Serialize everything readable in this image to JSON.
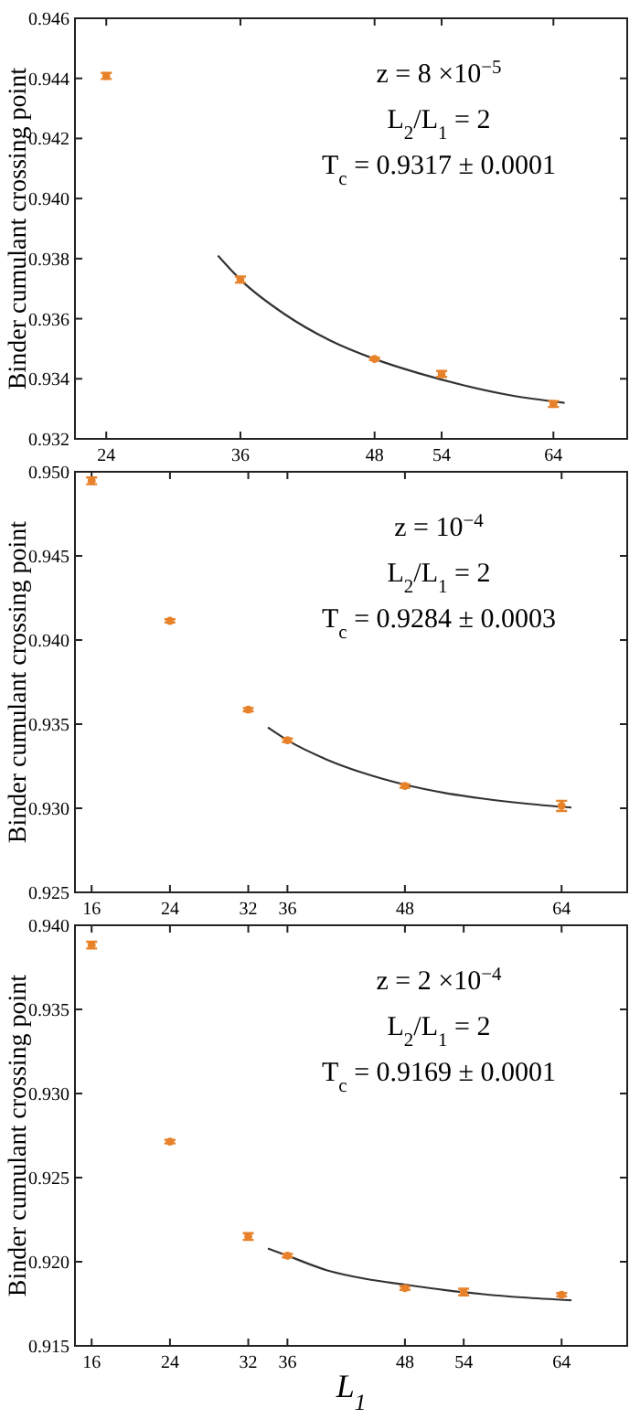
{
  "chart_data": [
    {
      "type": "scatter",
      "ylabel": "Binder cumulant crossing point",
      "xlim": [
        21.2,
        70.6
      ],
      "xticks": [
        24,
        36,
        48,
        54,
        64
      ],
      "ylim": [
        0.932,
        0.946
      ],
      "yticks": [
        0.932,
        0.934,
        0.936,
        0.938,
        {
          "value": 0.94,
          "label": "0.940"
        },
        0.942,
        0.944,
        0.946
      ],
      "grid": false,
      "annotations": [
        "z = 8 ×10$^{−5}$",
        "L$_{2}$/L$_{1}$ = 2",
        "T$_{c}$ = 0.9317 ± 0.0001"
      ],
      "series": [
        {
          "color": "#e8822a",
          "marker": "circle",
          "x": [
            24,
            36,
            48,
            54,
            64
          ],
          "values": [
            0.94408,
            0.9373,
            0.93466,
            0.93416,
            0.93316
          ],
          "errors": [
            0.0001,
            0.0001,
            4e-05,
            0.0001,
            0.0001
          ]
        },
        {
          "type": "line",
          "color": "#333333",
          "x": [
            34,
            36,
            40,
            44,
            48,
            52,
            56,
            60,
            65
          ],
          "values": [
            0.9381,
            0.9373,
            0.93614,
            0.93528,
            0.93466,
            0.93418,
            0.93378,
            0.93346,
            0.9332
          ]
        }
      ]
    },
    {
      "type": "scatter",
      "ylabel": "Binder cumulant crossing point",
      "xlim": [
        14.3,
        70.7
      ],
      "xticks": [
        16,
        24,
        32,
        36,
        48,
        64
      ],
      "ylim": [
        0.925,
        0.95
      ],
      "yticks": [
        0.925,
        {
          "value": 0.93,
          "label": "0.930"
        },
        0.935,
        {
          "value": 0.94,
          "label": "0.940"
        },
        0.945,
        {
          "value": 0.95,
          "label": "0.950"
        }
      ],
      "grid": false,
      "annotations": [
        "z = 10$^{−4}$",
        "L$_{2}$/L$_{1}$ = 2",
        "T$_{c}$ = 0.9284 ± 0.0003"
      ],
      "series": [
        {
          "color": "#e8822a",
          "marker": "circle",
          "x": [
            16,
            24,
            32,
            36,
            48,
            64
          ],
          "values": [
            0.94946,
            0.94114,
            0.93586,
            0.93404,
            0.93132,
            0.93014
          ],
          "errors": [
            0.0002,
            0.0001,
            0.0001,
            0.0001,
            0.0001,
            0.0003
          ]
        },
        {
          "type": "line",
          "color": "#333333",
          "x": [
            34,
            36,
            40,
            44,
            48,
            52,
            56,
            60,
            65
          ],
          "values": [
            0.9348,
            0.93404,
            0.9329,
            0.93205,
            0.9314,
            0.93092,
            0.93057,
            0.9303,
            0.93004
          ]
        }
      ]
    },
    {
      "type": "scatter",
      "xlabel": "L$_{1}$",
      "ylabel": "Binder cumulant crossing point",
      "xlim": [
        14.3,
        70.7
      ],
      "xticks": [
        16,
        24,
        32,
        36,
        48,
        54,
        64
      ],
      "ylim": [
        0.915,
        0.94
      ],
      "yticks": [
        0.915,
        {
          "value": 0.92,
          "label": "0.920"
        },
        0.925,
        {
          "value": 0.93,
          "label": "0.930"
        },
        0.935,
        {
          "value": 0.94,
          "label": "0.940"
        }
      ],
      "grid": false,
      "annotations": [
        "z = 2 ×10$^{−4}$",
        "L$_{2}$/L$_{1}$ = 2",
        "T$_{c}$ = 0.9169 ± 0.0001"
      ],
      "series": [
        {
          "color": "#e8822a",
          "marker": "circle",
          "x": [
            16,
            24,
            32,
            36,
            48,
            54,
            64
          ],
          "values": [
            0.93882,
            0.92714,
            0.9215,
            0.92036,
            0.91843,
            0.9182,
            0.91804
          ],
          "errors": [
            0.0002,
            0.0001,
            0.0002,
            0.0001,
            0.0001,
            0.0002,
            0.0001
          ]
        },
        {
          "type": "line",
          "color": "#333333",
          "x": [
            34,
            36,
            40,
            44,
            48,
            52,
            56,
            60,
            65
          ],
          "values": [
            0.92079,
            0.92036,
            0.9195,
            0.91898,
            0.91864,
            0.91832,
            0.91807,
            0.91788,
            0.91771
          ]
        }
      ]
    }
  ]
}
